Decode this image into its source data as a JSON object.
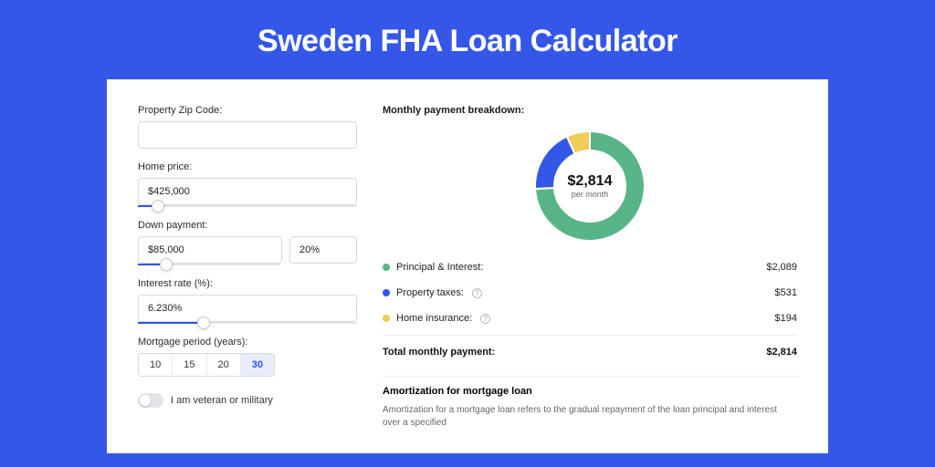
{
  "page": {
    "title": "Sweden FHA Loan Calculator"
  },
  "form": {
    "zip_label": "Property Zip Code:",
    "zip_value": "",
    "home_price_label": "Home price:",
    "home_price_value": "$425,000",
    "home_price_slider_pct": 9,
    "down_label": "Down payment:",
    "down_value": "$85,000",
    "down_pct": "20%",
    "down_slider_pct": 20,
    "rate_label": "Interest rate (%):",
    "rate_value": "6.230%",
    "rate_slider_pct": 30,
    "period_label": "Mortgage period (years):",
    "periods": [
      "10",
      "15",
      "20",
      "30"
    ],
    "period_selected": "30",
    "veteran_label": "I am veteran or military",
    "veteran_on": false
  },
  "breakdown": {
    "title": "Monthly payment breakdown:",
    "donut": {
      "amount": "$2,814",
      "sub": "per month",
      "slices": [
        {
          "name": "pi",
          "label": "Principal & Interest:",
          "value": "$2,089",
          "color": "#58b587",
          "pct": 74.2,
          "info": false
        },
        {
          "name": "tax",
          "label": "Property taxes:",
          "value": "$531",
          "color": "#3557e8",
          "pct": 18.9,
          "info": true
        },
        {
          "name": "ins",
          "label": "Home insurance:",
          "value": "$194",
          "color": "#f0cd59",
          "pct": 6.9,
          "info": true
        }
      ]
    },
    "total_label": "Total monthly payment:",
    "total_value": "$2,814"
  },
  "amort": {
    "title": "Amortization for mortgage loan",
    "text": "Amortization for a mortgage loan refers to the gradual repayment of the loan principal and interest over a specified"
  },
  "colors": {
    "page_bg": "#3557e8",
    "card_bg": "#ffffff",
    "accent": "#2f55e6",
    "border": "#d7d9de"
  }
}
